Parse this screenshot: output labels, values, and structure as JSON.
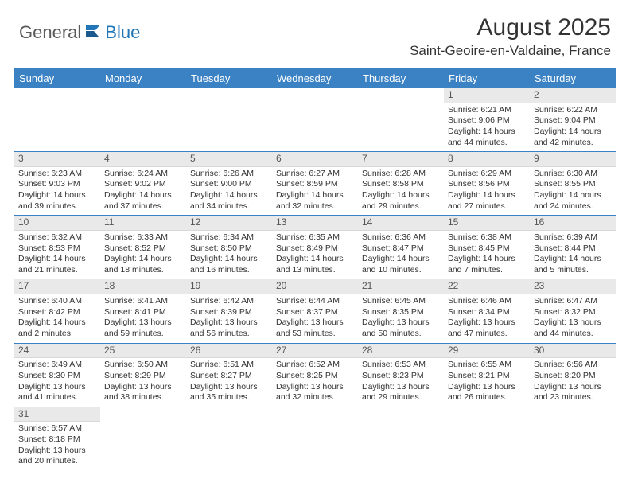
{
  "brand": {
    "part1": "General",
    "part2": "Blue"
  },
  "title": "August 2025",
  "location": "Saint-Geoire-en-Valdaine, France",
  "colors": {
    "header_bg": "#3b82c4",
    "header_text": "#ffffff",
    "daynum_bg": "#e9e9e9",
    "row_divider": "#3b82c4",
    "brand_blue": "#2176b8",
    "text": "#333333"
  },
  "weekdays": [
    "Sunday",
    "Monday",
    "Tuesday",
    "Wednesday",
    "Thursday",
    "Friday",
    "Saturday"
  ],
  "weeks": [
    [
      {
        "empty": true
      },
      {
        "empty": true
      },
      {
        "empty": true
      },
      {
        "empty": true
      },
      {
        "empty": true
      },
      {
        "day": "1",
        "sunrise": "Sunrise: 6:21 AM",
        "sunset": "Sunset: 9:06 PM",
        "daylight": "Daylight: 14 hours and 44 minutes."
      },
      {
        "day": "2",
        "sunrise": "Sunrise: 6:22 AM",
        "sunset": "Sunset: 9:04 PM",
        "daylight": "Daylight: 14 hours and 42 minutes."
      }
    ],
    [
      {
        "day": "3",
        "sunrise": "Sunrise: 6:23 AM",
        "sunset": "Sunset: 9:03 PM",
        "daylight": "Daylight: 14 hours and 39 minutes."
      },
      {
        "day": "4",
        "sunrise": "Sunrise: 6:24 AM",
        "sunset": "Sunset: 9:02 PM",
        "daylight": "Daylight: 14 hours and 37 minutes."
      },
      {
        "day": "5",
        "sunrise": "Sunrise: 6:26 AM",
        "sunset": "Sunset: 9:00 PM",
        "daylight": "Daylight: 14 hours and 34 minutes."
      },
      {
        "day": "6",
        "sunrise": "Sunrise: 6:27 AM",
        "sunset": "Sunset: 8:59 PM",
        "daylight": "Daylight: 14 hours and 32 minutes."
      },
      {
        "day": "7",
        "sunrise": "Sunrise: 6:28 AM",
        "sunset": "Sunset: 8:58 PM",
        "daylight": "Daylight: 14 hours and 29 minutes."
      },
      {
        "day": "8",
        "sunrise": "Sunrise: 6:29 AM",
        "sunset": "Sunset: 8:56 PM",
        "daylight": "Daylight: 14 hours and 27 minutes."
      },
      {
        "day": "9",
        "sunrise": "Sunrise: 6:30 AM",
        "sunset": "Sunset: 8:55 PM",
        "daylight": "Daylight: 14 hours and 24 minutes."
      }
    ],
    [
      {
        "day": "10",
        "sunrise": "Sunrise: 6:32 AM",
        "sunset": "Sunset: 8:53 PM",
        "daylight": "Daylight: 14 hours and 21 minutes."
      },
      {
        "day": "11",
        "sunrise": "Sunrise: 6:33 AM",
        "sunset": "Sunset: 8:52 PM",
        "daylight": "Daylight: 14 hours and 18 minutes."
      },
      {
        "day": "12",
        "sunrise": "Sunrise: 6:34 AM",
        "sunset": "Sunset: 8:50 PM",
        "daylight": "Daylight: 14 hours and 16 minutes."
      },
      {
        "day": "13",
        "sunrise": "Sunrise: 6:35 AM",
        "sunset": "Sunset: 8:49 PM",
        "daylight": "Daylight: 14 hours and 13 minutes."
      },
      {
        "day": "14",
        "sunrise": "Sunrise: 6:36 AM",
        "sunset": "Sunset: 8:47 PM",
        "daylight": "Daylight: 14 hours and 10 minutes."
      },
      {
        "day": "15",
        "sunrise": "Sunrise: 6:38 AM",
        "sunset": "Sunset: 8:45 PM",
        "daylight": "Daylight: 14 hours and 7 minutes."
      },
      {
        "day": "16",
        "sunrise": "Sunrise: 6:39 AM",
        "sunset": "Sunset: 8:44 PM",
        "daylight": "Daylight: 14 hours and 5 minutes."
      }
    ],
    [
      {
        "day": "17",
        "sunrise": "Sunrise: 6:40 AM",
        "sunset": "Sunset: 8:42 PM",
        "daylight": "Daylight: 14 hours and 2 minutes."
      },
      {
        "day": "18",
        "sunrise": "Sunrise: 6:41 AM",
        "sunset": "Sunset: 8:41 PM",
        "daylight": "Daylight: 13 hours and 59 minutes."
      },
      {
        "day": "19",
        "sunrise": "Sunrise: 6:42 AM",
        "sunset": "Sunset: 8:39 PM",
        "daylight": "Daylight: 13 hours and 56 minutes."
      },
      {
        "day": "20",
        "sunrise": "Sunrise: 6:44 AM",
        "sunset": "Sunset: 8:37 PM",
        "daylight": "Daylight: 13 hours and 53 minutes."
      },
      {
        "day": "21",
        "sunrise": "Sunrise: 6:45 AM",
        "sunset": "Sunset: 8:35 PM",
        "daylight": "Daylight: 13 hours and 50 minutes."
      },
      {
        "day": "22",
        "sunrise": "Sunrise: 6:46 AM",
        "sunset": "Sunset: 8:34 PM",
        "daylight": "Daylight: 13 hours and 47 minutes."
      },
      {
        "day": "23",
        "sunrise": "Sunrise: 6:47 AM",
        "sunset": "Sunset: 8:32 PM",
        "daylight": "Daylight: 13 hours and 44 minutes."
      }
    ],
    [
      {
        "day": "24",
        "sunrise": "Sunrise: 6:49 AM",
        "sunset": "Sunset: 8:30 PM",
        "daylight": "Daylight: 13 hours and 41 minutes."
      },
      {
        "day": "25",
        "sunrise": "Sunrise: 6:50 AM",
        "sunset": "Sunset: 8:29 PM",
        "daylight": "Daylight: 13 hours and 38 minutes."
      },
      {
        "day": "26",
        "sunrise": "Sunrise: 6:51 AM",
        "sunset": "Sunset: 8:27 PM",
        "daylight": "Daylight: 13 hours and 35 minutes."
      },
      {
        "day": "27",
        "sunrise": "Sunrise: 6:52 AM",
        "sunset": "Sunset: 8:25 PM",
        "daylight": "Daylight: 13 hours and 32 minutes."
      },
      {
        "day": "28",
        "sunrise": "Sunrise: 6:53 AM",
        "sunset": "Sunset: 8:23 PM",
        "daylight": "Daylight: 13 hours and 29 minutes."
      },
      {
        "day": "29",
        "sunrise": "Sunrise: 6:55 AM",
        "sunset": "Sunset: 8:21 PM",
        "daylight": "Daylight: 13 hours and 26 minutes."
      },
      {
        "day": "30",
        "sunrise": "Sunrise: 6:56 AM",
        "sunset": "Sunset: 8:20 PM",
        "daylight": "Daylight: 13 hours and 23 minutes."
      }
    ],
    [
      {
        "day": "31",
        "sunrise": "Sunrise: 6:57 AM",
        "sunset": "Sunset: 8:18 PM",
        "daylight": "Daylight: 13 hours and 20 minutes."
      },
      {
        "empty": true
      },
      {
        "empty": true
      },
      {
        "empty": true
      },
      {
        "empty": true
      },
      {
        "empty": true
      },
      {
        "empty": true
      }
    ]
  ]
}
